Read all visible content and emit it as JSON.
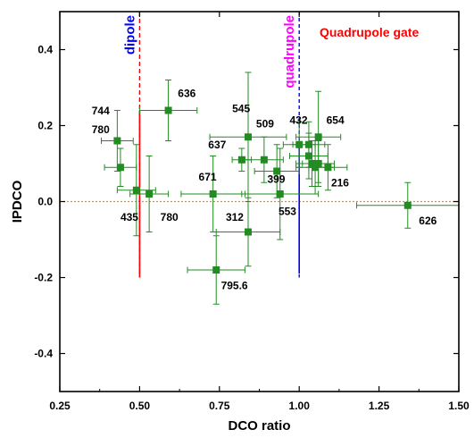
{
  "chart_data": {
    "type": "scatter",
    "xlabel": "DCO ratio",
    "ylabel": "IPDCO",
    "xlim": [
      0.25,
      1.5
    ],
    "ylim": [
      -0.5,
      0.5
    ],
    "x_ticks": [
      0.25,
      0.5,
      0.75,
      1.0,
      1.25,
      1.5
    ],
    "x_tick_labels": [
      "0.25",
      "0.50",
      "0.75",
      "1.00",
      "1.25",
      "1.50"
    ],
    "y_ticks": [
      -0.4,
      -0.2,
      0.0,
      0.2,
      0.4
    ],
    "y_tick_labels": [
      "-0.4",
      "-0.2",
      "0.0",
      "0.2",
      "0.4"
    ],
    "grid": false,
    "colors": {
      "points": "#228b22",
      "dipole": "#ff0000",
      "quadrupole": "#0000ff",
      "zero_line": "#ff8c00",
      "dipole_text": "#0000ff",
      "quadrupole_text": "#ff00ff",
      "gate_text": "#ff0000"
    },
    "annotations": {
      "dipole": "dipole",
      "quadrupole": "quadrupole",
      "gate": "Quadrupole gate"
    },
    "reference_lines": {
      "dipole_x": 0.5,
      "quadrupole_x": 1.0,
      "zero_y": 0.0
    },
    "points": [
      {
        "x": 0.43,
        "y": 0.16,
        "xerr": 0.05,
        "yerr": 0.08
      },
      {
        "x": 0.44,
        "y": 0.09,
        "xerr": 0.05,
        "yerr": 0.05
      },
      {
        "x": 0.49,
        "y": 0.03,
        "xerr": 0.06,
        "yerr": 0.12
      },
      {
        "x": 0.53,
        "y": 0.02,
        "xerr": 0.06,
        "yerr": 0.1
      },
      {
        "x": 0.59,
        "y": 0.24,
        "xerr": 0.09,
        "yerr": 0.08
      },
      {
        "x": 0.73,
        "y": 0.02,
        "xerr": 0.1,
        "yerr": 0.1
      },
      {
        "x": 0.74,
        "y": -0.18,
        "xerr": 0.09,
        "yerr": 0.09
      },
      {
        "x": 0.82,
        "y": 0.11,
        "xerr": 0.03,
        "yerr": 0.03
      },
      {
        "x": 0.84,
        "y": 0.17,
        "xerr": 0.12,
        "yerr": 0.17
      },
      {
        "x": 0.84,
        "y": -0.08,
        "xerr": 0.1,
        "yerr": 0.09
      },
      {
        "x": 0.89,
        "y": 0.11,
        "xerr": 0.06,
        "yerr": 0.06
      },
      {
        "x": 0.93,
        "y": 0.08,
        "xerr": 0.07,
        "yerr": 0.07
      },
      {
        "x": 0.94,
        "y": 0.02,
        "xerr": 0.12,
        "yerr": 0.12
      },
      {
        "x": 1.0,
        "y": 0.15,
        "xerr": 0.05,
        "yerr": 0.06
      },
      {
        "x": 1.03,
        "y": 0.15,
        "xerr": 0.05,
        "yerr": 0.06
      },
      {
        "x": 1.03,
        "y": 0.12,
        "xerr": 0.06,
        "yerr": 0.06
      },
      {
        "x": 1.04,
        "y": 0.1,
        "xerr": 0.05,
        "yerr": 0.06
      },
      {
        "x": 1.05,
        "y": 0.09,
        "xerr": 0.06,
        "yerr": 0.07
      },
      {
        "x": 1.06,
        "y": 0.17,
        "xerr": 0.07,
        "yerr": 0.12
      },
      {
        "x": 1.06,
        "y": 0.1,
        "xerr": 0.05,
        "yerr": 0.06
      },
      {
        "x": 1.09,
        "y": 0.09,
        "xerr": 0.06,
        "yerr": 0.06
      },
      {
        "x": 1.34,
        "y": -0.01,
        "xerr": 0.16,
        "yerr": 0.06
      }
    ],
    "labels": [
      {
        "text": "744",
        "x": 0.35,
        "y": 0.23
      },
      {
        "text": "780",
        "x": 0.35,
        "y": 0.18
      },
      {
        "text": "636",
        "x": 0.62,
        "y": 0.275
      },
      {
        "text": "545",
        "x": 0.79,
        "y": 0.235
      },
      {
        "text": "509",
        "x": 0.865,
        "y": 0.195
      },
      {
        "text": "432",
        "x": 0.97,
        "y": 0.205
      },
      {
        "text": "654",
        "x": 1.085,
        "y": 0.205
      },
      {
        "text": "637",
        "x": 0.715,
        "y": 0.14
      },
      {
        "text": "671",
        "x": 0.685,
        "y": 0.055
      },
      {
        "text": "399",
        "x": 0.9,
        "y": 0.05
      },
      {
        "text": "216",
        "x": 1.1,
        "y": 0.04
      },
      {
        "text": "435",
        "x": 0.44,
        "y": -0.05
      },
      {
        "text": "780",
        "x": 0.565,
        "y": -0.05
      },
      {
        "text": "312",
        "x": 0.77,
        "y": -0.05
      },
      {
        "text": "553",
        "x": 0.935,
        "y": -0.035
      },
      {
        "text": "626",
        "x": 1.375,
        "y": -0.06
      },
      {
        "text": "795.6",
        "x": 0.755,
        "y": -0.23
      }
    ]
  }
}
